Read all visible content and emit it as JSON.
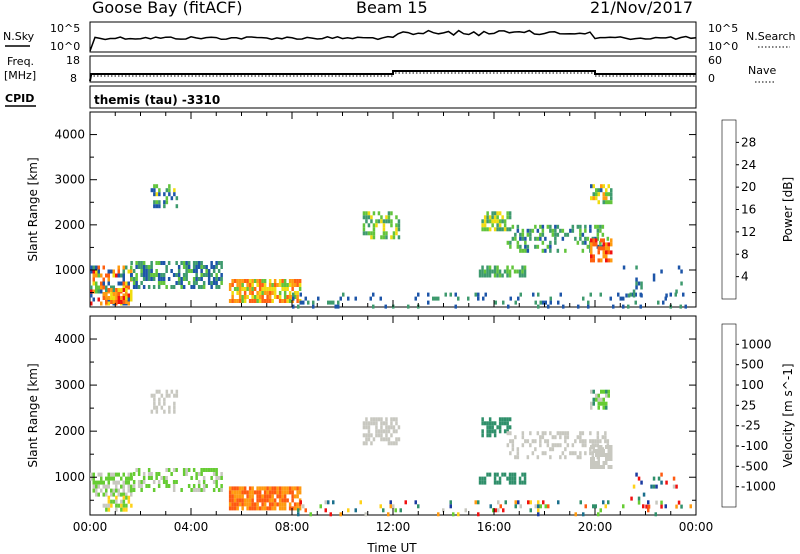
{
  "header": {
    "station": "Goose Bay (fitACF)",
    "beam": "Beam 15",
    "date": "21/Nov/2017"
  },
  "summary": {
    "nsky_label": "N.Sky",
    "nsearch_label": "N.Search",
    "noise_ticks_left": [
      "10^5",
      "10^0"
    ],
    "noise_ticks_right": [
      "10^5",
      "10^0"
    ],
    "freq_label_1": "Freq.",
    "freq_label_2": "[MHz]",
    "freq_ticks": [
      "18",
      "8"
    ],
    "nave_label": "Nave",
    "nave_ticks": [
      "60",
      "0"
    ],
    "cpid_label": "CPID",
    "cpid_value": "themis (tau) -3310"
  },
  "chart_data": [
    {
      "type": "heatmap",
      "name": "power",
      "ylabel": "Slant Range [km]",
      "xlabel": "Time UT",
      "xlim_hours": [
        0,
        24
      ],
      "x_tick_labels": [
        "00:00",
        "04:00",
        "08:00",
        "12:00",
        "16:00",
        "20:00",
        "00:00"
      ],
      "ylim_km": [
        180,
        4500
      ],
      "y_ticks": [
        1000,
        2000,
        3000,
        4000
      ],
      "colorbar_label": "Power [dB]",
      "colorbar_ticks": [
        "4",
        "8",
        "12",
        "16",
        "20",
        "24",
        "28"
      ],
      "colorbar_colors": [
        "#0c1cf2",
        "#1d55a8",
        "#3e9a6e",
        "#62c43c",
        "#f0dc10",
        "#ff9a10",
        "#ff6010",
        "#f01010"
      ],
      "scale": [
        0,
        32
      ],
      "patches": [
        {
          "t": [
            0.0,
            1.6
          ],
          "r": [
            300,
            1100
          ],
          "v": [
            4,
            30
          ],
          "d": 0.6
        },
        {
          "t": [
            1.6,
            5.2
          ],
          "r": [
            600,
            1200
          ],
          "v": [
            4,
            14
          ],
          "d": 0.55
        },
        {
          "t": [
            0.5,
            1.4
          ],
          "r": [
            300,
            600
          ],
          "v": [
            18,
            30
          ],
          "d": 0.8
        },
        {
          "t": [
            5.5,
            8.3
          ],
          "r": [
            300,
            800
          ],
          "v": [
            14,
            28
          ],
          "d": 0.8
        },
        {
          "t": [
            2.4,
            3.4
          ],
          "r": [
            2400,
            2900
          ],
          "v": [
            4,
            18
          ],
          "d": 0.4
        },
        {
          "t": [
            10.8,
            12.2
          ],
          "r": [
            1700,
            2300
          ],
          "v": [
            8,
            18
          ],
          "d": 0.6
        },
        {
          "t": [
            15.5,
            16.6
          ],
          "r": [
            1900,
            2300
          ],
          "v": [
            8,
            20
          ],
          "d": 0.5
        },
        {
          "t": [
            16.5,
            20.5
          ],
          "r": [
            1400,
            2000
          ],
          "v": [
            6,
            16
          ],
          "d": 0.4
        },
        {
          "t": [
            15.4,
            17.2
          ],
          "r": [
            900,
            1100
          ],
          "v": [
            8,
            14
          ],
          "d": 0.6
        },
        {
          "t": [
            19.8,
            20.6
          ],
          "r": [
            1200,
            1700
          ],
          "v": [
            20,
            30
          ],
          "d": 0.7
        },
        {
          "t": [
            19.8,
            20.6
          ],
          "r": [
            2500,
            2900
          ],
          "v": [
            6,
            22
          ],
          "d": 0.6
        },
        {
          "t": [
            8.0,
            24.0
          ],
          "r": [
            200,
            500
          ],
          "v": [
            4,
            10
          ],
          "d": 0.15
        },
        {
          "t": [
            21.0,
            23.5
          ],
          "r": [
            400,
            1100
          ],
          "v": [
            4,
            10
          ],
          "d": 0.1
        }
      ]
    },
    {
      "type": "heatmap",
      "name": "velocity",
      "ylabel": "Slant Range [km]",
      "xlabel": "Time UT",
      "xlim_hours": [
        0,
        24
      ],
      "x_tick_labels": [
        "00:00",
        "04:00",
        "08:00",
        "12:00",
        "16:00",
        "20:00",
        "00:00"
      ],
      "ylim_km": [
        180,
        4500
      ],
      "y_ticks": [
        1000,
        2000,
        3000,
        4000
      ],
      "colorbar_label": "Velocity [m s^-1]",
      "colorbar_ticks": [
        "1000",
        "500",
        "100",
        "25",
        "-25",
        "-100",
        "-500",
        "-1000"
      ],
      "colorbar_colors": [
        "#1a3aa0",
        "#1a6f8c",
        "#2f8f6a",
        "#66cc33",
        "#c8c8c0",
        "#ffd21a",
        "#ff9a10",
        "#ff5a10",
        "#f01010"
      ],
      "scale": [
        0,
        9
      ],
      "patches": [
        {
          "t": [
            0.0,
            1.6
          ],
          "r": [
            600,
            1100
          ],
          "v": [
            3.5,
            4.5
          ],
          "d": 0.7
        },
        {
          "t": [
            0.5,
            1.6
          ],
          "r": [
            300,
            600
          ],
          "v": [
            3,
            6
          ],
          "d": 0.6
        },
        {
          "t": [
            1.6,
            5.2
          ],
          "r": [
            700,
            1200
          ],
          "v": [
            3,
            4.5
          ],
          "d": 0.4
        },
        {
          "t": [
            5.5,
            8.3
          ],
          "r": [
            300,
            800
          ],
          "v": [
            6.5,
            7.5
          ],
          "d": 0.85
        },
        {
          "t": [
            2.4,
            3.4
          ],
          "r": [
            2400,
            2900
          ],
          "v": [
            4,
            4.5
          ],
          "d": 0.4
        },
        {
          "t": [
            10.8,
            12.2
          ],
          "r": [
            1700,
            2300
          ],
          "v": [
            4,
            4.5
          ],
          "d": 0.6
        },
        {
          "t": [
            15.5,
            16.6
          ],
          "r": [
            1900,
            2300
          ],
          "v": [
            2,
            3
          ],
          "d": 0.5
        },
        {
          "t": [
            16.5,
            20.5
          ],
          "r": [
            1400,
            2000
          ],
          "v": [
            4,
            4.5
          ],
          "d": 0.4
        },
        {
          "t": [
            15.4,
            17.2
          ],
          "r": [
            900,
            1100
          ],
          "v": [
            2,
            3
          ],
          "d": 0.6
        },
        {
          "t": [
            19.8,
            20.6
          ],
          "r": [
            1200,
            1700
          ],
          "v": [
            4,
            4.5
          ],
          "d": 0.7
        },
        {
          "t": [
            19.8,
            20.6
          ],
          "r": [
            2500,
            2900
          ],
          "v": [
            2.5,
            4.5
          ],
          "d": 0.5
        },
        {
          "t": [
            8.0,
            24.0
          ],
          "r": [
            200,
            500
          ],
          "v": [
            0,
            9
          ],
          "d": 0.12
        },
        {
          "t": [
            21.0,
            23.5
          ],
          "r": [
            400,
            1100
          ],
          "v": [
            0,
            9
          ],
          "d": 0.08
        }
      ]
    }
  ]
}
